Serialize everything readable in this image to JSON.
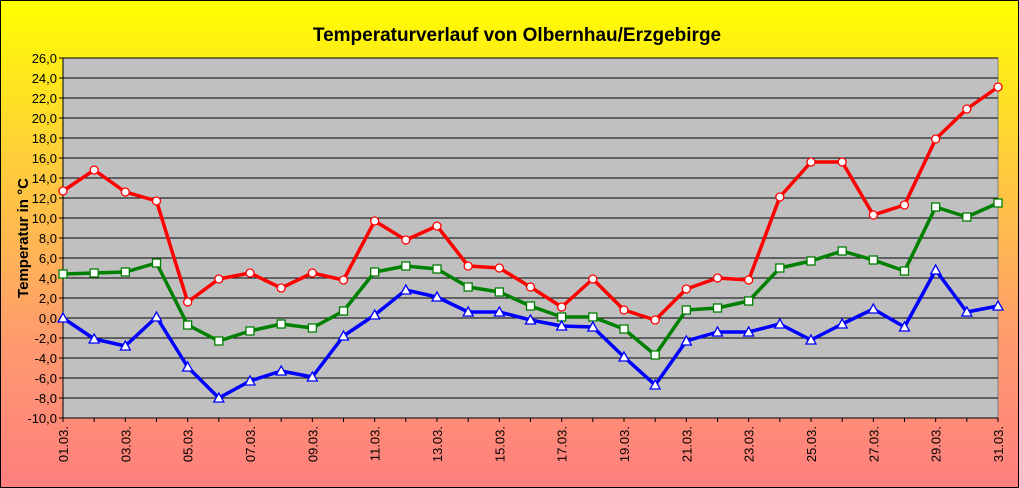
{
  "chart_data": {
    "type": "line",
    "title": "Temperaturverlauf von Olbernhau/Erzgebirge",
    "xlabel": "",
    "ylabel": "Temperatur in °C",
    "ylim": [
      -10,
      26
    ],
    "ytick_step": 2,
    "ytick_labels": [
      "26,0",
      "24,0",
      "22,0",
      "20,0",
      "18,0",
      "16,0",
      "14,0",
      "12,0",
      "10,0",
      "8,0",
      "6,0",
      "4,0",
      "2,0",
      "0,0",
      "-2,0",
      "-4,0",
      "-6,0",
      "-8,0",
      "-10,0"
    ],
    "categories": [
      "01.03.",
      "02.03.",
      "03.03.",
      "04.03.",
      "05.03.",
      "06.03.",
      "07.03.",
      "08.03.",
      "09.03.",
      "10.03.",
      "11.03.",
      "12.03.",
      "13.03.",
      "14.03.",
      "15.03.",
      "16.03.",
      "17.03.",
      "18.03.",
      "19.03.",
      "20.03.",
      "21.03.",
      "22.03.",
      "23.03.",
      "24.03.",
      "25.03.",
      "26.03.",
      "27.03.",
      "28.03.",
      "29.03.",
      "30.03.",
      "31.03."
    ],
    "visible_tick_labels": [
      "01.03.",
      "03.03.",
      "05.03.",
      "07.03.",
      "09.03.",
      "11.03.",
      "13.03.",
      "15.03.",
      "17.03.",
      "19.03.",
      "21.03.",
      "23.03.",
      "25.03.",
      "27.03.",
      "29.03.",
      "31.03."
    ],
    "grid": true,
    "plot_background": "#c0c0c0",
    "series": [
      {
        "color": "#ff0000",
        "marker": "circle",
        "values": [
          12.7,
          14.8,
          12.6,
          11.7,
          1.6,
          3.9,
          4.5,
          3.0,
          4.5,
          3.8,
          9.7,
          7.8,
          9.2,
          5.2,
          5.0,
          3.1,
          1.1,
          3.9,
          0.8,
          -0.2,
          2.9,
          4.0,
          3.8,
          12.1,
          15.6,
          15.6,
          10.3,
          11.3,
          17.9,
          20.9,
          23.1
        ]
      },
      {
        "color": "#008000",
        "marker": "square",
        "values": [
          4.4,
          4.5,
          4.6,
          5.5,
          -0.7,
          -2.3,
          -1.3,
          -0.6,
          -1.0,
          0.7,
          4.6,
          5.2,
          4.9,
          3.1,
          2.6,
          1.2,
          0.1,
          0.1,
          -1.1,
          -3.7,
          0.8,
          1.0,
          1.7,
          5.0,
          5.7,
          6.7,
          5.8,
          4.7,
          11.1,
          10.1,
          11.5
        ]
      },
      {
        "color": "#0000ff",
        "marker": "triangle",
        "values": [
          0.0,
          -2.1,
          -2.8,
          0.1,
          -4.9,
          -8.0,
          -6.3,
          -5.3,
          -5.9,
          -1.8,
          0.3,
          2.8,
          2.1,
          0.6,
          0.6,
          -0.2,
          -0.8,
          -0.9,
          -3.9,
          -6.7,
          -2.3,
          -1.4,
          -1.4,
          -0.6,
          -2.2,
          -0.6,
          0.9,
          -0.9,
          4.8,
          0.6,
          1.2
        ]
      }
    ]
  }
}
